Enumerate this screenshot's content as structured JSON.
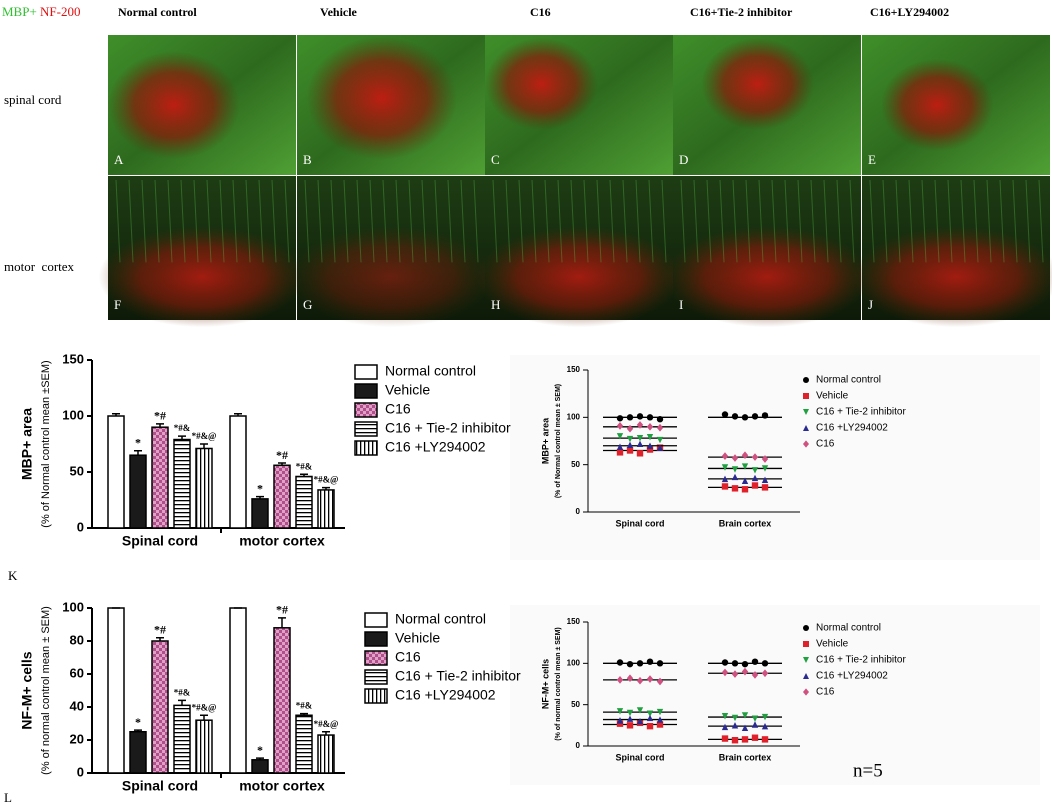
{
  "figure": {
    "stain_label": [
      "MBP+",
      "NF-200"
    ],
    "columns": [
      "Normal control",
      "Vehicle",
      "C16",
      "C16+Tie-2 inhibitor",
      "C16+LY294002"
    ],
    "rows": [
      "spinal cord",
      "motor  cortex"
    ],
    "panel_letters": [
      "A",
      "B",
      "C",
      "D",
      "E",
      "F",
      "G",
      "H",
      "I",
      "J"
    ],
    "chart_letters": [
      "K",
      "L"
    ],
    "n_note": "n=5"
  },
  "chart_data": [
    {
      "type": "bar",
      "ylabel": "MBP+ area",
      "ylabel_note": "(% of Normal control mean ±SEM)",
      "categories": [
        "Spinal cord",
        "motor cortex"
      ],
      "ylim": [
        0,
        150
      ],
      "yticks": [
        0,
        50,
        100,
        150
      ],
      "series": [
        {
          "name": "Normal control",
          "color": "#ffffff",
          "pattern": "solid",
          "values": [
            100,
            100
          ],
          "errors": [
            2,
            2
          ],
          "annotations": [
            null,
            null
          ]
        },
        {
          "name": "Vehicle",
          "color": "#1a1a1a",
          "pattern": "solid",
          "values": [
            65,
            26
          ],
          "errors": [
            4,
            2
          ],
          "annotations": [
            "*",
            "*"
          ]
        },
        {
          "name": "C16",
          "color": "#b0508a",
          "pattern": "checker",
          "values": [
            90,
            56
          ],
          "errors": [
            3,
            2
          ],
          "annotations": [
            "*#",
            "*#"
          ]
        },
        {
          "name": "C16 + Tie-2 inhibitor",
          "color": "#ffffff",
          "pattern": "hstripe",
          "values": [
            79,
            46
          ],
          "errors": [
            3,
            2
          ],
          "annotations": [
            "*#&",
            "*#&"
          ]
        },
        {
          "name": "C16 +LY294002",
          "color": "#ffffff",
          "pattern": "vstripe",
          "values": [
            71,
            34
          ],
          "errors": [
            4,
            2
          ],
          "annotations": [
            "*#&@",
            "*#&@"
          ]
        }
      ]
    },
    {
      "type": "strip",
      "ylabel": "MBP+ area",
      "ylabel_note": "(% of Normal control mean ± SEM)",
      "categories": [
        "Spinal cord",
        "Brain cortex"
      ],
      "ylim": [
        0,
        150
      ],
      "yticks": [
        0,
        50,
        100,
        150
      ],
      "series": [
        {
          "name": "Normal control",
          "color": "#000000",
          "marker": "circle",
          "values": [
            [
              99,
              100,
              101,
              100,
              98
            ],
            [
              103,
              101,
              100,
              101,
              102
            ]
          ],
          "means": [
            100,
            100
          ]
        },
        {
          "name": "Vehicle",
          "color": "#e0202a",
          "marker": "square",
          "values": [
            [
              63,
              65,
              62,
              66,
              68
            ],
            [
              27,
              25,
              24,
              28,
              26
            ]
          ],
          "means": [
            65,
            26
          ]
        },
        {
          "name": "C16 + Tie-2 inhibitor",
          "color": "#20a040",
          "marker": "triangle-down",
          "values": [
            [
              80,
              77,
              78,
              79,
              76
            ],
            [
              47,
              45,
              48,
              44,
              46
            ]
          ],
          "means": [
            78,
            46
          ]
        },
        {
          "name": "C16 +LY294002",
          "color": "#2a2a90",
          "marker": "triangle-up",
          "values": [
            [
              69,
              71,
              72,
              70,
              68
            ],
            [
              35,
              37,
              33,
              36,
              34
            ]
          ],
          "means": [
            70,
            35
          ]
        },
        {
          "name": "C16",
          "color": "#d05080",
          "marker": "diamond",
          "values": [
            [
              91,
              88,
              92,
              90,
              89
            ],
            [
              59,
              57,
              60,
              58,
              56
            ]
          ],
          "means": [
            90,
            58
          ]
        }
      ]
    },
    {
      "type": "bar",
      "ylabel": "NF-M+ cells",
      "ylabel_note": "(% of normal control mean ± SEM)",
      "categories": [
        "Spinal cord",
        "motor cortex"
      ],
      "ylim": [
        0,
        100
      ],
      "yticks": [
        0,
        20,
        40,
        60,
        80,
        100
      ],
      "series": [
        {
          "name": "Normal control",
          "color": "#ffffff",
          "pattern": "solid",
          "values": [
            100,
            100
          ],
          "errors": [
            0,
            0
          ],
          "annotations": [
            null,
            null
          ]
        },
        {
          "name": "Vehicle",
          "color": "#1a1a1a",
          "pattern": "solid",
          "values": [
            25,
            8
          ],
          "errors": [
            1,
            1
          ],
          "annotations": [
            "*",
            "*"
          ]
        },
        {
          "name": "C16",
          "color": "#b0508a",
          "pattern": "checker",
          "values": [
            80,
            88
          ],
          "errors": [
            2,
            6
          ],
          "annotations": [
            "*#",
            "*#"
          ]
        },
        {
          "name": "C16 + Tie-2 inhibitor",
          "color": "#ffffff",
          "pattern": "hstripe",
          "values": [
            41,
            35
          ],
          "errors": [
            3,
            1
          ],
          "annotations": [
            "*#&",
            "*#&"
          ]
        },
        {
          "name": "C16 +LY294002",
          "color": "#ffffff",
          "pattern": "vstripe",
          "values": [
            32,
            23
          ],
          "errors": [
            3,
            2
          ],
          "annotations": [
            "*#&@",
            "*#&@"
          ]
        }
      ]
    },
    {
      "type": "strip",
      "ylabel": "NF-M+ cells",
      "ylabel_note": "(% of normal control mean ± SEM)",
      "categories": [
        "Spinal cord",
        "Brain cortex"
      ],
      "ylim": [
        0,
        150
      ],
      "yticks": [
        0,
        50,
        100,
        150
      ],
      "series": [
        {
          "name": "Normal control",
          "color": "#000000",
          "marker": "circle",
          "values": [
            [
              101,
              99,
              100,
              102,
              100
            ],
            [
              101,
              100,
              99,
              102,
              100
            ]
          ],
          "means": [
            100,
            100
          ]
        },
        {
          "name": "Vehicle",
          "color": "#e0202a",
          "marker": "square",
          "values": [
            [
              27,
              25,
              28,
              24,
              26
            ],
            [
              9,
              7,
              8,
              10,
              8
            ]
          ],
          "means": [
            26,
            8
          ]
        },
        {
          "name": "C16 + Tie-2 inhibitor",
          "color": "#20a040",
          "marker": "triangle-down",
          "values": [
            [
              42,
              40,
              43,
              39,
              41
            ],
            [
              36,
              34,
              37,
              33,
              35
            ]
          ],
          "means": [
            41,
            35
          ]
        },
        {
          "name": "C16 +LY294002",
          "color": "#2a2a90",
          "marker": "triangle-up",
          "values": [
            [
              31,
              33,
              30,
              34,
              32
            ],
            [
              23,
              25,
              22,
              26,
              24
            ]
          ],
          "means": [
            32,
            24
          ]
        },
        {
          "name": "C16",
          "color": "#d05080",
          "marker": "diamond",
          "values": [
            [
              80,
              82,
              79,
              81,
              78
            ],
            [
              89,
              87,
              90,
              86,
              88
            ]
          ],
          "means": [
            80,
            88
          ]
        }
      ]
    }
  ]
}
